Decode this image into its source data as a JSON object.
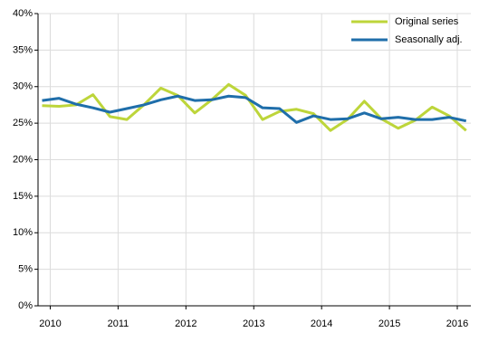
{
  "chart_data": {
    "type": "line",
    "x": [
      2009.88,
      2010.13,
      2010.38,
      2010.63,
      2010.88,
      2011.13,
      2011.38,
      2011.63,
      2011.88,
      2012.13,
      2012.38,
      2012.63,
      2012.88,
      2013.13,
      2013.38,
      2013.63,
      2013.88,
      2014.13,
      2014.38,
      2014.63,
      2014.88,
      2015.13,
      2015.38,
      2015.63,
      2015.88,
      2016.13
    ],
    "series": [
      {
        "name": "Original series",
        "color": "#bdd53a",
        "values": [
          27.4,
          27.3,
          27.5,
          28.9,
          25.9,
          25.5,
          27.5,
          29.8,
          28.8,
          26.4,
          28.2,
          30.3,
          28.8,
          25.5,
          26.6,
          26.9,
          26.3,
          24.0,
          25.5,
          28.0,
          25.6,
          24.3,
          25.4,
          27.2,
          26.0,
          24.0
        ]
      },
      {
        "name": "Seasonally adj.",
        "color": "#1f6eaa",
        "values": [
          28.1,
          28.4,
          27.6,
          27.1,
          26.5,
          27.0,
          27.5,
          28.2,
          28.7,
          28.1,
          28.2,
          28.7,
          28.5,
          27.1,
          27.0,
          25.1,
          26.0,
          25.5,
          25.6,
          26.4,
          25.6,
          25.8,
          25.5,
          25.5,
          25.8,
          25.3
        ]
      }
    ],
    "xlim": [
      2009.82,
      2016.2
    ],
    "xticks": [
      2010,
      2011,
      2012,
      2013,
      2014,
      2015,
      2016
    ],
    "ylim": [
      0,
      40
    ],
    "yticks": [
      {
        "value": 0,
        "label": "0%"
      },
      {
        "value": 5,
        "label": "5%"
      },
      {
        "value": 10,
        "label": "10%"
      },
      {
        "value": 15,
        "label": "15%"
      },
      {
        "value": 20,
        "label": "20%"
      },
      {
        "value": 25,
        "label": "25%"
      },
      {
        "value": 30,
        "label": "30%"
      },
      {
        "value": 35,
        "label": "35%"
      },
      {
        "value": 40,
        "label": "40%"
      }
    ],
    "grid": true,
    "legend": "top-right"
  }
}
